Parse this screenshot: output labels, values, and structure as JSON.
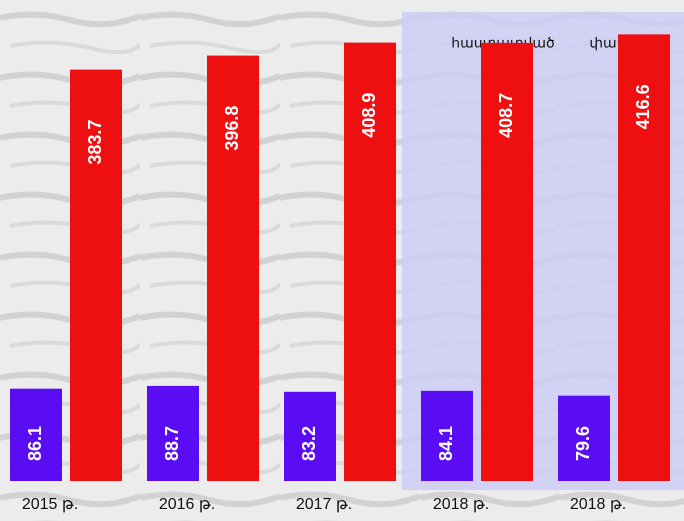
{
  "chart_data": {
    "type": "bar",
    "categories": [
      "2015 թ.",
      "2016 թ.",
      "2017 թ.",
      "2018 թ.",
      "2018 թ."
    ],
    "series": [
      {
        "color": "#5a0cf2",
        "values": [
          86.1,
          88.7,
          83.2,
          84.1,
          79.6
        ]
      },
      {
        "color": "#ee0f10",
        "values": [
          383.7,
          396.8,
          408.9,
          408.7,
          416.6
        ]
      }
    ],
    "annotations": [
      "հաստատված",
      "փաստացի"
    ],
    "ylim": [
      0,
      430
    ]
  }
}
